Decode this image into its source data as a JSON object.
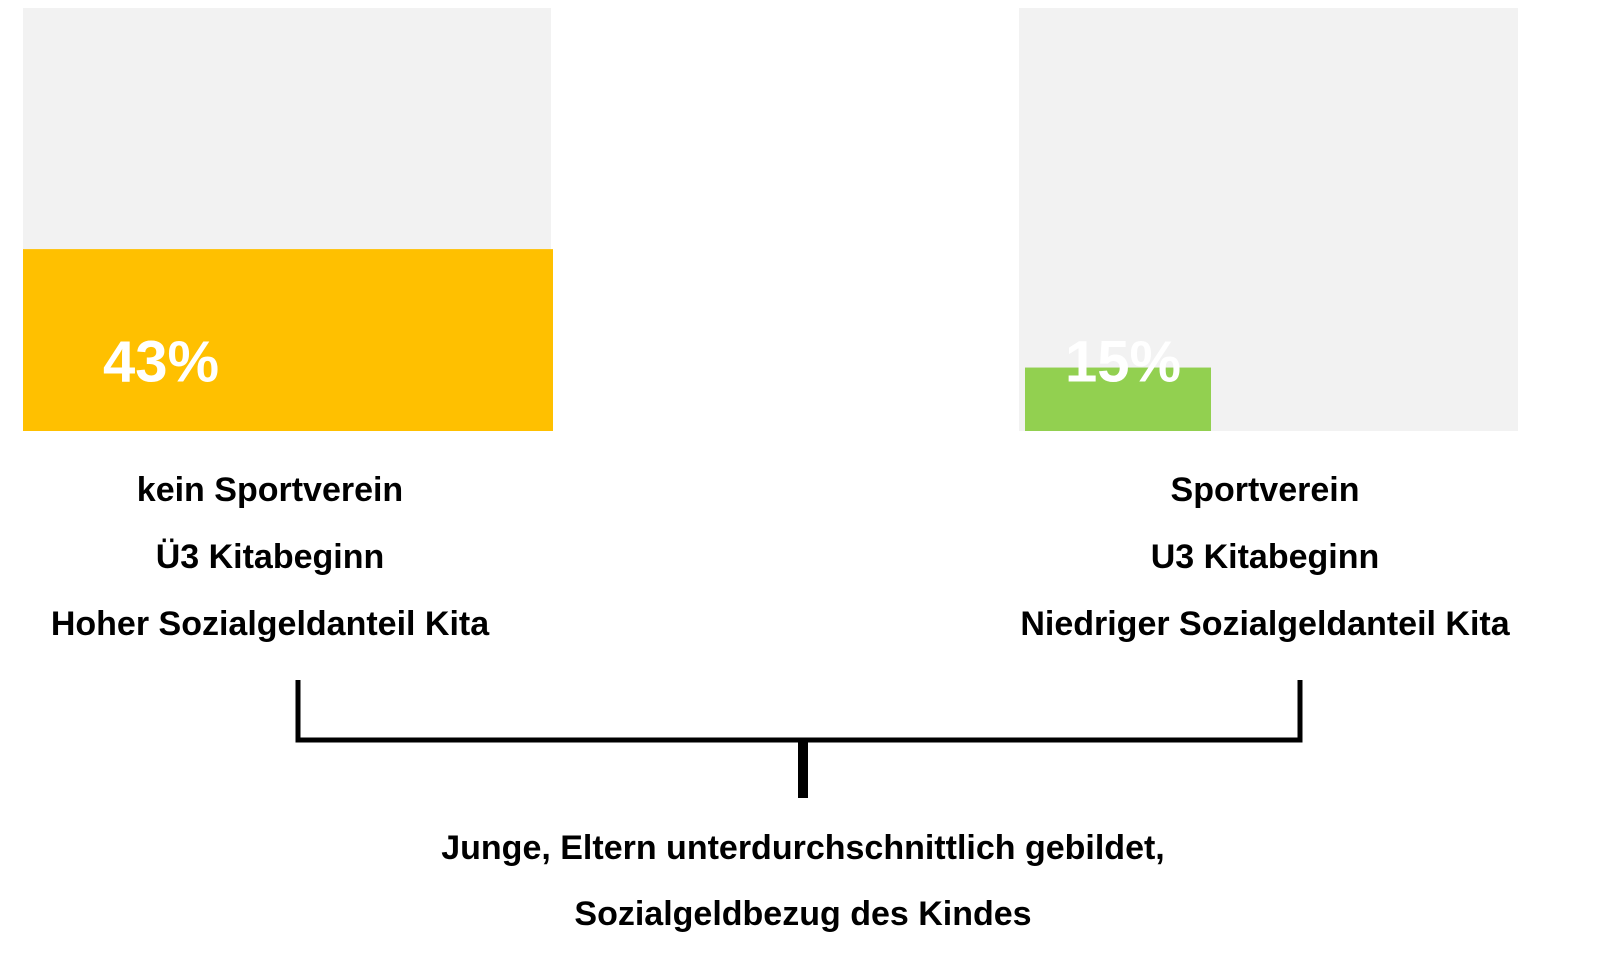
{
  "chart_data": {
    "type": "bar",
    "categories": [
      [
        "kein Sportverein",
        "Ü3 Kitabeginn",
        "Hoher Sozialgeldanteil Kita"
      ],
      [
        "Sportverein",
        "U3 Kitabeginn",
        "Niedriger Sozialgeldanteil Kita"
      ]
    ],
    "values": [
      43,
      15
    ],
    "value_labels": [
      "43%",
      "15%"
    ],
    "colors": [
      "#ffc000",
      "#92d050"
    ],
    "background": "#f2f2f2",
    "ylim": [
      0,
      100
    ],
    "annotation": [
      "Junge, Eltern unterdurchschnittlich gebildet,",
      "Sozialgeldbezug des Kindes"
    ]
  }
}
